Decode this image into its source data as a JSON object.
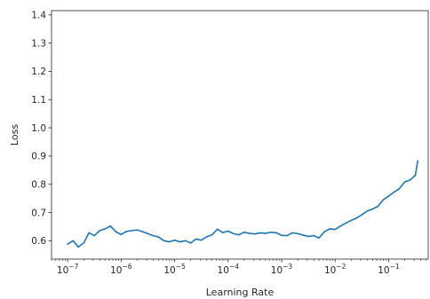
{
  "chart_data": {
    "type": "line",
    "title": "",
    "xlabel": "Learning Rate",
    "ylabel": "Loss",
    "x_scale": "log",
    "xlim": [
      5e-08,
      0.55
    ],
    "ylim": [
      0.535,
      1.415
    ],
    "grid": false,
    "line_color": "#1f77b4",
    "x_ticks": [
      {
        "value": 1e-07,
        "base": "10",
        "exp": "−7"
      },
      {
        "value": 1e-06,
        "base": "10",
        "exp": "−6"
      },
      {
        "value": 1e-05,
        "base": "10",
        "exp": "−5"
      },
      {
        "value": 0.0001,
        "base": "10",
        "exp": "−4"
      },
      {
        "value": 0.001,
        "base": "10",
        "exp": "−3"
      },
      {
        "value": 0.01,
        "base": "10",
        "exp": "−2"
      },
      {
        "value": 0.1,
        "base": "10",
        "exp": "−1"
      }
    ],
    "y_ticks": [
      {
        "value": 0.6,
        "label": "0.6"
      },
      {
        "value": 0.7,
        "label": "0.7"
      },
      {
        "value": 0.8,
        "label": "0.8"
      },
      {
        "value": 0.9,
        "label": "0.9"
      },
      {
        "value": 1.0,
        "label": "1.0"
      },
      {
        "value": 1.1,
        "label": "1.1"
      },
      {
        "value": 1.2,
        "label": "1.2"
      },
      {
        "value": 1.3,
        "label": "1.3"
      },
      {
        "value": 1.4,
        "label": "1.4"
      }
    ],
    "series": [
      {
        "x": [
          1e-07,
          1.26e-07,
          1.58e-07,
          2e-07,
          2.51e-07,
          3.16e-07,
          3.98e-07,
          5.01e-07,
          6.31e-07,
          7.94e-07,
          1e-06,
          1.26e-06,
          1.58e-06,
          2e-06,
          2.51e-06,
          3.16e-06,
          3.98e-06,
          5.01e-06,
          6.31e-06,
          7.94e-06,
          1e-05,
          1.26e-05,
          1.58e-05,
          2e-05,
          2.51e-05,
          3.16e-05,
          3.98e-05,
          5.01e-05,
          6.31e-05,
          7.94e-05,
          0.0001,
          0.000126,
          0.000158,
          0.0002,
          0.000251,
          0.000316,
          0.000398,
          0.000501,
          0.000631,
          0.000794,
          0.001,
          0.00126,
          0.00158,
          0.002,
          0.00251,
          0.00316,
          0.00398,
          0.00501,
          0.00631,
          0.00794,
          0.01,
          0.0126,
          0.0158,
          0.02,
          0.0251,
          0.0316,
          0.0398,
          0.0501,
          0.0631,
          0.0794,
          0.1,
          0.126,
          0.158,
          0.2,
          0.251,
          0.316,
          0.35
        ],
        "y": [
          0.588,
          0.6,
          0.578,
          0.592,
          0.628,
          0.618,
          0.636,
          0.642,
          0.652,
          0.632,
          0.622,
          0.633,
          0.636,
          0.638,
          0.632,
          0.625,
          0.618,
          0.613,
          0.6,
          0.596,
          0.602,
          0.596,
          0.6,
          0.592,
          0.606,
          0.602,
          0.614,
          0.621,
          0.641,
          0.629,
          0.634,
          0.625,
          0.621,
          0.63,
          0.626,
          0.624,
          0.628,
          0.626,
          0.63,
          0.628,
          0.619,
          0.618,
          0.628,
          0.625,
          0.62,
          0.615,
          0.618,
          0.61,
          0.632,
          0.642,
          0.64,
          0.652,
          0.662,
          0.672,
          0.68,
          0.692,
          0.705,
          0.712,
          0.722,
          0.745,
          0.758,
          0.772,
          0.784,
          0.808,
          0.815,
          0.832,
          0.882
        ]
      }
    ]
  }
}
